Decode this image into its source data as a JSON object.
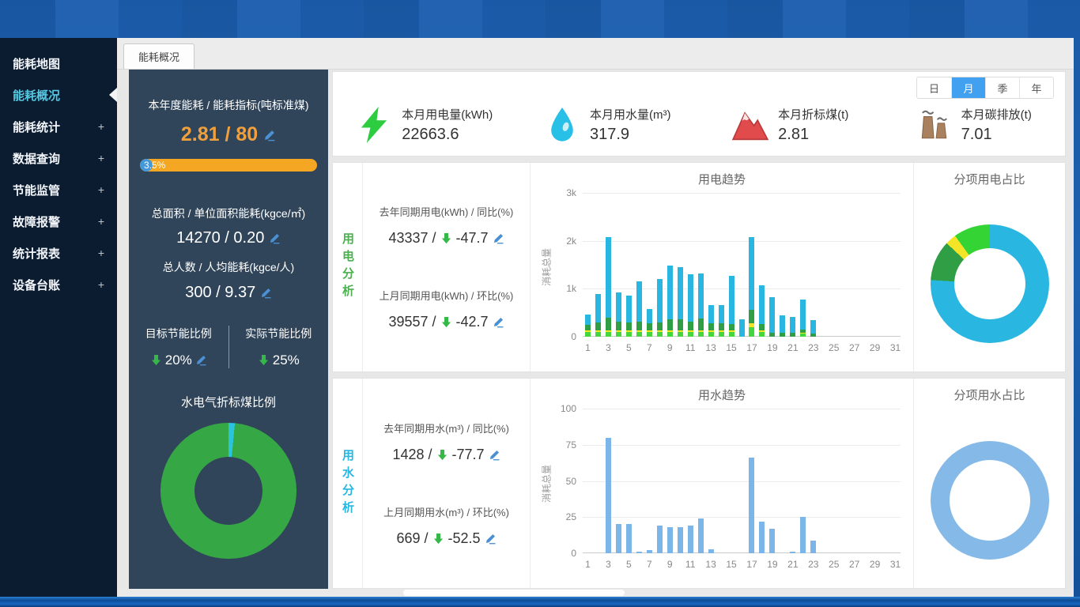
{
  "sidebar": {
    "plus": "+",
    "items": [
      {
        "label": "能耗地图",
        "expandable": false,
        "active": false
      },
      {
        "label": "能耗概况",
        "expandable": false,
        "active": true
      },
      {
        "label": "能耗统计",
        "expandable": true,
        "active": false
      },
      {
        "label": "数据查询",
        "expandable": true,
        "active": false
      },
      {
        "label": "节能监管",
        "expandable": true,
        "active": false
      },
      {
        "label": "故障报警",
        "expandable": true,
        "active": false
      },
      {
        "label": "统计报表",
        "expandable": true,
        "active": false
      },
      {
        "label": "设备台账",
        "expandable": true,
        "active": false
      }
    ]
  },
  "tab": {
    "label": "能耗概况"
  },
  "left_panel": {
    "annual": {
      "title": "本年度能耗 / 能耗指标(吨标准煤)",
      "value": "2.81 / 80",
      "progress_label": "3.5%",
      "progress_pct": 3.5
    },
    "area": {
      "title": "总面积 / 单位面积能耗(kgce/㎡)",
      "value": "14270 / 0.20"
    },
    "people": {
      "title": "总人数 / 人均能耗(kgce/人)",
      "value": "300 / 9.37"
    },
    "target": {
      "title": "目标节能比例",
      "value": "20%"
    },
    "actual": {
      "title": "实际节能比例",
      "value": "25%"
    }
  },
  "kpis": [
    {
      "icon": "lightning-icon",
      "label": "本月用电量(kWh)",
      "value": "22663.6"
    },
    {
      "icon": "water-drop-icon",
      "label": "本月用水量(m³)",
      "value": "317.9"
    },
    {
      "icon": "mountain-icon",
      "label": "本月折标煤(t)",
      "value": "2.81"
    },
    {
      "icon": "factory-icon",
      "label": "本月碳排放(t)",
      "value": "7.01"
    }
  ],
  "period_buttons": [
    {
      "label": "日",
      "active": false
    },
    {
      "label": "月",
      "active": true
    },
    {
      "label": "季",
      "active": false
    },
    {
      "label": "年",
      "active": false
    }
  ],
  "electric": {
    "section_label": "用电分析",
    "stat1_title": "去年同期用电(kWh) / 同比(%)",
    "stat1_value": "43337 /",
    "stat1_pct": "-47.7",
    "stat2_title": "上月同期用电(kWh) / 环比(%)",
    "stat2_value": "39557 /",
    "stat2_pct": "-42.7"
  },
  "water": {
    "section_label": "用水分析",
    "stat1_title": "去年同期用水(m³) / 同比(%)",
    "stat1_value": "1428 /",
    "stat1_pct": "-77.7",
    "stat2_title": "上月同期用水(m³) / 环比(%)",
    "stat2_value": "669 /",
    "stat2_pct": "-52.5"
  },
  "colors": {
    "accent_orange": "#f0a03c",
    "progress_track": "#f5a623",
    "progress_fill": "#4598d8",
    "active_menu": "#57c8e2",
    "period_active": "#42a0f0",
    "arrow_green": "#35b848",
    "edit_blue": "#4a90d2"
  },
  "chart_data": [
    {
      "id": "electric-trend",
      "type": "bar",
      "stacked": true,
      "title": "用电趋势",
      "ylabel": "消耗总量",
      "x": [
        1,
        2,
        3,
        4,
        5,
        6,
        7,
        8,
        9,
        10,
        11,
        12,
        13,
        14,
        15,
        16,
        17,
        18,
        19,
        20,
        21,
        22,
        23,
        24,
        25,
        26,
        27,
        28,
        29,
        30,
        31
      ],
      "x_label_step": 2,
      "ylim": [
        0,
        3000
      ],
      "yticks": [
        {
          "v": 0,
          "label": "0"
        },
        {
          "v": 1000,
          "label": "1k"
        },
        {
          "v": 2000,
          "label": "2k"
        },
        {
          "v": 3000,
          "label": "3k"
        }
      ],
      "series": [
        {
          "name": "segment-light-green",
          "color": "#46d53e",
          "values": [
            100,
            100,
            100,
            100,
            100,
            100,
            100,
            100,
            100,
            100,
            100,
            100,
            100,
            100,
            100,
            0,
            200,
            100,
            0,
            0,
            0,
            60,
            0,
            0,
            0,
            0,
            0,
            0,
            0,
            0,
            0
          ]
        },
        {
          "name": "segment-yellow",
          "color": "#f4e427",
          "values": [
            40,
            40,
            40,
            40,
            40,
            40,
            40,
            40,
            40,
            40,
            40,
            40,
            40,
            40,
            40,
            0,
            80,
            40,
            0,
            0,
            0,
            30,
            0,
            0,
            0,
            0,
            0,
            0,
            0,
            0,
            0
          ]
        },
        {
          "name": "segment-dark-green",
          "color": "#2f9e44",
          "values": [
            110,
            160,
            260,
            180,
            150,
            170,
            140,
            160,
            230,
            230,
            170,
            240,
            140,
            140,
            120,
            0,
            280,
            130,
            90,
            80,
            80,
            60,
            60,
            0,
            0,
            0,
            0,
            0,
            0,
            0,
            0
          ]
        },
        {
          "name": "segment-cyan",
          "color": "#29b6e0",
          "values": [
            220,
            590,
            1680,
            610,
            570,
            850,
            290,
            900,
            1110,
            1080,
            990,
            940,
            380,
            380,
            1010,
            360,
            1520,
            800,
            730,
            370,
            330,
            620,
            280,
            0,
            0,
            0,
            0,
            0,
            0,
            0,
            0
          ]
        }
      ]
    },
    {
      "id": "water-trend",
      "type": "bar",
      "stacked": false,
      "title": "用水趋势",
      "ylabel": "消耗总量",
      "x": [
        1,
        2,
        3,
        4,
        5,
        6,
        7,
        8,
        9,
        10,
        11,
        12,
        13,
        14,
        15,
        16,
        17,
        18,
        19,
        20,
        21,
        22,
        23,
        24,
        25,
        26,
        27,
        28,
        29,
        30,
        31
      ],
      "x_label_step": 2,
      "ylim": [
        0,
        100
      ],
      "yticks": [
        {
          "v": 0,
          "label": "0"
        },
        {
          "v": 25,
          "label": "25"
        },
        {
          "v": 50,
          "label": "50"
        },
        {
          "v": 75,
          "label": "75"
        },
        {
          "v": 100,
          "label": "100"
        }
      ],
      "series": [
        {
          "name": "water-usage",
          "color": "#7cb5e8",
          "values": [
            0,
            0,
            80,
            20,
            20,
            1,
            2,
            19,
            18,
            18,
            19,
            24,
            3,
            0,
            0,
            0,
            66,
            22,
            17,
            0,
            1,
            25,
            9,
            0,
            0,
            0,
            0,
            0,
            0,
            0,
            0
          ]
        }
      ]
    },
    {
      "id": "electric-share",
      "type": "pie",
      "title": "分项用电占比",
      "hole": 0.6,
      "slices": [
        {
          "name": "share-cyan",
          "color": "#29b6e0",
          "pct": 76
        },
        {
          "name": "share-dark-green",
          "color": "#2f9e44",
          "pct": 11
        },
        {
          "name": "share-yellow",
          "color": "#f4e427",
          "pct": 3
        },
        {
          "name": "share-light-green",
          "color": "#35d435",
          "pct": 10
        }
      ]
    },
    {
      "id": "water-share",
      "type": "pie",
      "title": "分项用水占比",
      "hole": 0.68,
      "slices": [
        {
          "name": "share-water",
          "color": "#85b9e8",
          "pct": 100
        }
      ]
    },
    {
      "id": "coal-ratio",
      "type": "pie",
      "title": "水电气折标煤比例",
      "hole": 0.5,
      "slices": [
        {
          "name": "ratio-cyan",
          "color": "#2ac4dc",
          "pct": 1.5
        },
        {
          "name": "ratio-green",
          "color": "#35a845",
          "pct": 98.5
        }
      ]
    }
  ]
}
